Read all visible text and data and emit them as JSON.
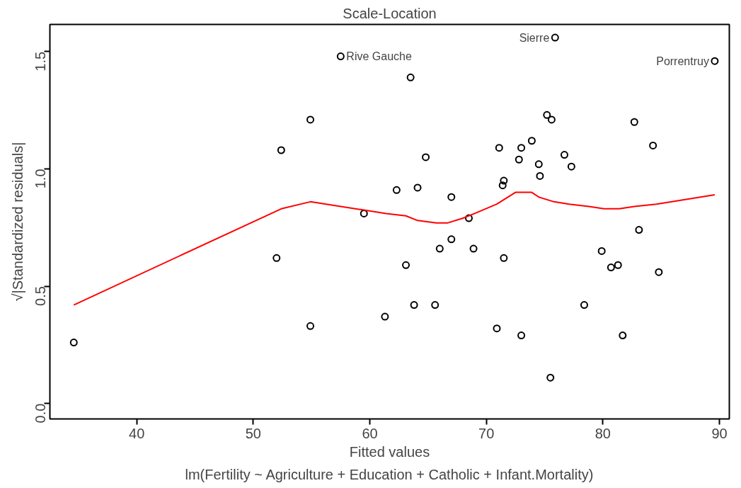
{
  "chart_data": {
    "type": "scatter",
    "title": "Scale-Location",
    "xlabel": "Fitted values",
    "subtitle": "lm(Fertility ~ Agriculture + Education + Catholic + Infant.Mortality)",
    "ylabel": "√|Standardized residuals|",
    "xlim": [
      32.55,
      90.85
    ],
    "ylim": [
      -0.066,
      1.616
    ],
    "xticks": [
      40,
      50,
      60,
      70,
      80,
      90
    ],
    "yticks": [
      {
        "value": 0,
        "label": "0.0"
      },
      0.5,
      {
        "value": 1,
        "label": "1.0"
      },
      1.5
    ],
    "grid": false,
    "series": [
      {
        "marker": "circle",
        "color": "#000000",
        "x": [
          34.6,
          57.5,
          63.5,
          54.9,
          52.4,
          64.8,
          62.3,
          64.1,
          67.0,
          59.5,
          52.0,
          54.9,
          63.1,
          61.3,
          63.8,
          65.6,
          66.0,
          67.0,
          68.5,
          68.9,
          75.9,
          89.6,
          75.2,
          75.6,
          82.7,
          84.3,
          73.9,
          71.1,
          73.0,
          72.8,
          74.5,
          76.7,
          77.3,
          74.6,
          71.5,
          71.4,
          71.5,
          83.1,
          79.9,
          81.3,
          80.7,
          84.8,
          78.4,
          70.9,
          73.0,
          81.7,
          75.5
        ],
        "values": [
          0.26,
          1.48,
          1.39,
          1.21,
          1.08,
          1.05,
          0.91,
          0.92,
          0.88,
          0.81,
          0.62,
          0.33,
          0.59,
          0.37,
          0.42,
          0.42,
          0.66,
          0.7,
          0.79,
          0.66,
          1.56,
          1.46,
          1.23,
          1.21,
          1.2,
          1.1,
          1.12,
          1.09,
          1.09,
          1.04,
          1.02,
          1.06,
          1.01,
          0.97,
          0.95,
          0.93,
          0.62,
          0.74,
          0.65,
          0.59,
          0.58,
          0.56,
          0.42,
          0.32,
          0.29,
          0.29,
          0.11
        ]
      },
      {
        "type": "line",
        "color": "#ff0000",
        "x": [
          34.6,
          52.4,
          54.9,
          57.5,
          61.4,
          63.1,
          64.1,
          65.7,
          66.7,
          68.0,
          69.0,
          70.9,
          72.5,
          73.9,
          74.5,
          75.8,
          77.1,
          78.8,
          80.1,
          81.4,
          82.7,
          84.6,
          89.6
        ],
        "values": [
          0.42,
          0.83,
          0.86,
          0.84,
          0.81,
          0.8,
          0.78,
          0.77,
          0.77,
          0.79,
          0.81,
          0.85,
          0.9,
          0.9,
          0.88,
          0.86,
          0.85,
          0.84,
          0.83,
          0.83,
          0.84,
          0.85,
          0.89
        ]
      }
    ],
    "annotations": [
      {
        "text": "Rive Gauche",
        "x": 57.5,
        "y": 1.48
      },
      {
        "text": "Sierre",
        "x": 75.9,
        "y": 1.56
      },
      {
        "text": "Porrentruy",
        "x": 89.6,
        "y": 1.46
      }
    ]
  }
}
